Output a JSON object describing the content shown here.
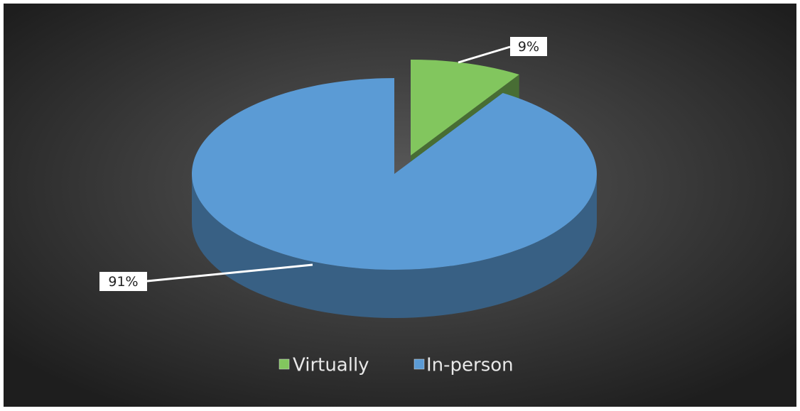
{
  "chart_data": {
    "type": "pie",
    "categories": [
      "Virtually",
      "In-person"
    ],
    "values": [
      9,
      91
    ],
    "value_labels": [
      "9%",
      "91%"
    ],
    "colors": [
      "#82c65e",
      "#5b9bd5"
    ],
    "legend": "bottom"
  }
}
